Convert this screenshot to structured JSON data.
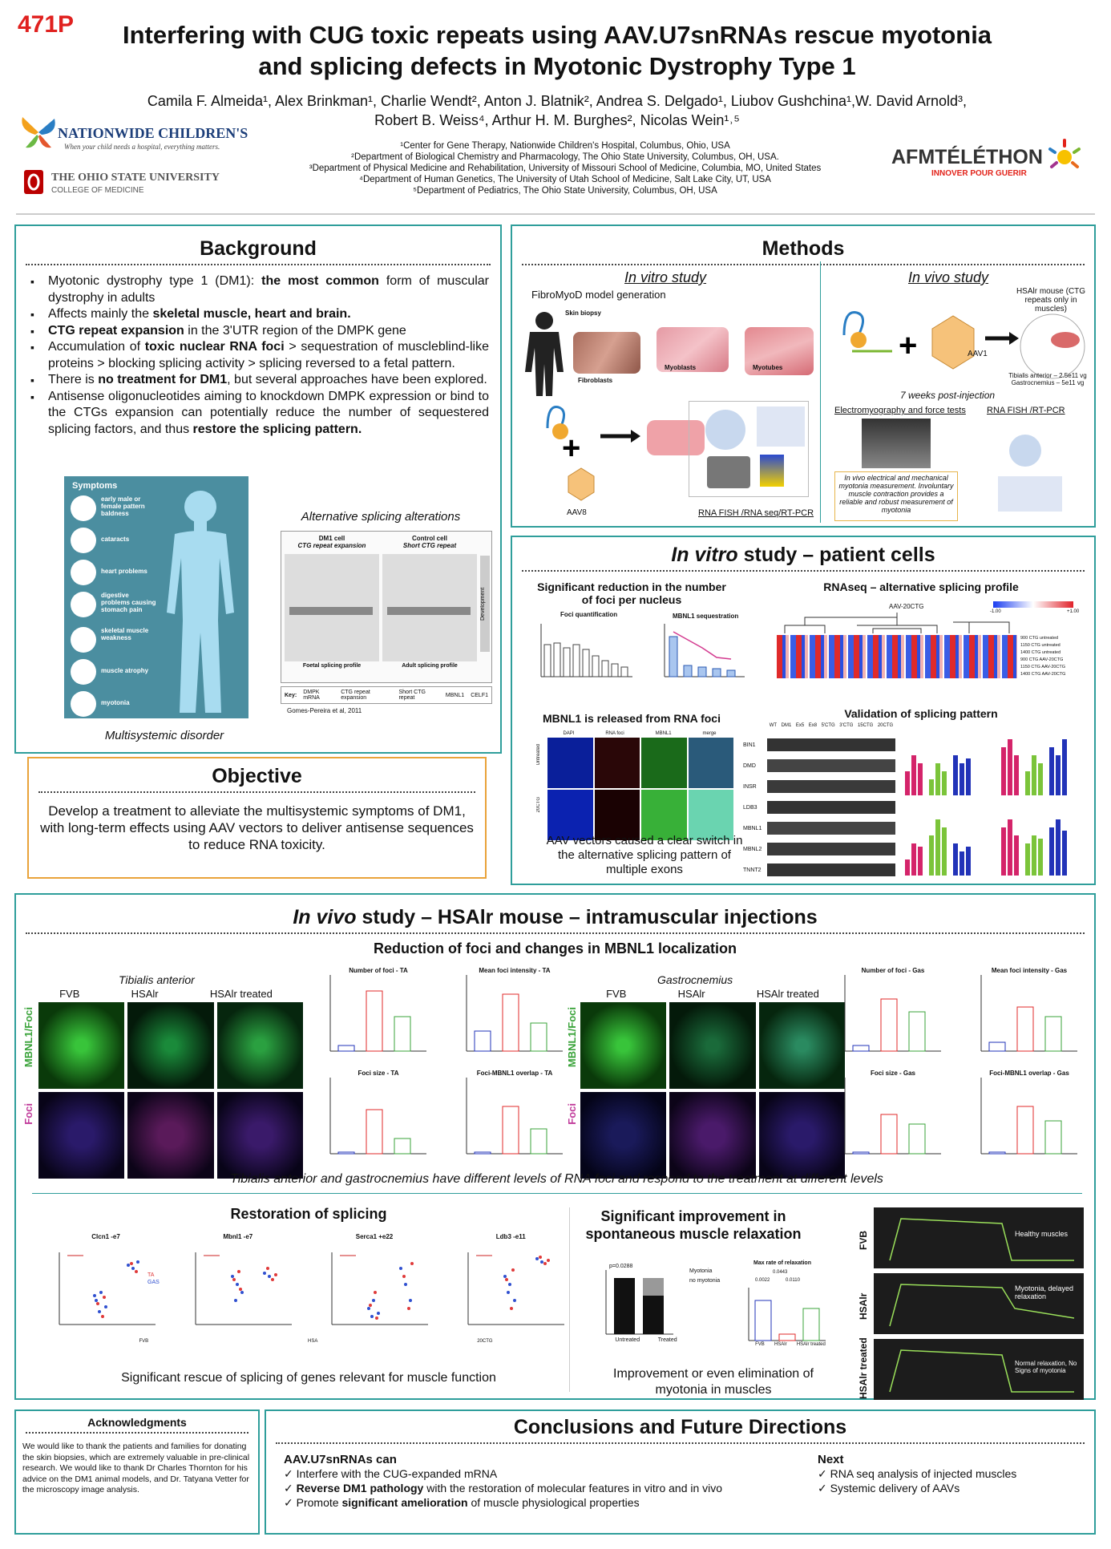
{
  "poster_id": "471P",
  "title_line1": "Interfering with CUG toxic repeats using AAV.U7snRNAs rescue myotonia",
  "title_line2": "and splicing defects in Myotonic Dystrophy Type 1",
  "authors_line1": "Camila F. Almeida¹, Alex Brinkman¹, Charlie Wendt², Anton J. Blatnik², Andrea S. Delgado¹, Liubov Gushchina¹,W. David Arnold³,",
  "authors_line2": "Robert B. Weiss⁴, Arthur H. M. Burghes², Nicolas Wein¹˒⁵",
  "affiliations": [
    "¹Center for Gene Therapy, Nationwide Children's Hospital, Columbus, Ohio, USA",
    "²Department of Biological Chemistry and Pharmacology, The Ohio State University, Columbus, OH, USA.",
    "³Department of Physical Medicine and Rehabilitation, University of Missouri School of Medicine, Columbia, MO, United States",
    "⁴Department of Human Genetics, The University of Utah School of Medicine, Salt Lake City, UT, USA",
    "⁵Department of Pediatrics, The Ohio State University, Columbus, OH, USA"
  ],
  "logos": {
    "nch_name": "NATIONWIDE CHILDREN'S",
    "nch_tag": "When your child needs a hospital, everything matters.",
    "osu_name": "THE OHIO STATE UNIVERSITY",
    "osu_sub": "COLLEGE OF MEDICINE",
    "afm_name": "AFMTÉLÉTHON",
    "afm_sub": "INNOVER POUR GUERIR"
  },
  "background": {
    "title": "Background",
    "bullets": [
      {
        "pre": "Myotonic dystrophy type 1 (DM1): ",
        "bold": "the most common",
        "post": " form of muscular dystrophy in adults"
      },
      {
        "pre": "Affects mainly the ",
        "bold": "skeletal muscle, heart and brain.",
        "post": ""
      },
      {
        "pre": "",
        "bold": "CTG repeat expansion",
        "post": " in the 3'UTR region of the DMPK gene"
      },
      {
        "pre": "Accumulation of ",
        "bold": "toxic nuclear RNA foci",
        "post": " > sequestration of muscleblind-like proteins > blocking splicing activity > splicing reversed to a fetal pattern."
      },
      {
        "pre": "There is ",
        "bold": "no treatment for DM1",
        "post": ", but several approaches have been explored."
      },
      {
        "pre": "Antisense oligonucleotides aiming to knockdown DMPK expression or bind to the CTGs expansion can potentially reduce the number of sequestered splicing factors, and thus ",
        "bold": "restore the splicing pattern.",
        "post": ""
      }
    ],
    "symptoms_title": "Symptoms",
    "symptoms": [
      "early male or female pattern baldness",
      "cataracts",
      "heart problems",
      "digestive problems causing stomach pain",
      "skeletal muscle weakness",
      "muscle atrophy",
      "myotonia"
    ],
    "symptoms_caption": "Multisystemic disorder",
    "alt_splicing_title": "Alternative splicing alterations",
    "dm1_cell": "DM1 cell",
    "dm1_cell_sub": "CTG repeat expansion",
    "control_cell": "Control cell",
    "control_cell_sub": "Short CTG repeat",
    "foetal": "Foetal splicing profile",
    "adult": "Adult splicing profile",
    "development": "Development",
    "key": "Key:",
    "key_items": [
      "DMPK mRNA",
      "CTG repeat expansion",
      "Short CTG repeat",
      "MBNL1",
      "CELF1"
    ],
    "citation": "Gomes-Pereira et al, 2011"
  },
  "objective": {
    "title": "Objective",
    "text": "Develop a treatment to alleviate the multisystemic symptoms of DM1, with long-term effects using AAV vectors to deliver antisense sequences to reduce RNA toxicity."
  },
  "methods": {
    "title": "Methods",
    "invitro_title": "In vitro study",
    "fibromyod": "FibroMyoD model generation",
    "skin_biopsy": "Skin biopsy",
    "fibroblasts": "Fibroblasts",
    "myoblasts": "Myoblasts",
    "myotubes": "Myotubes",
    "aav8": "AAV8",
    "rna_fish_seq": "RNA FISH /RNA seq/RT-PCR",
    "invivo_title": "In vivo study",
    "hsalr_mouse": "HSAlr mouse (CTG repeats only in muscles)",
    "aav1": "AAV1",
    "doses": "Tibialis anterior – 2.5e11 vg Gastrocnemius – 5e11 vg",
    "weeks": "7 weeks post-injection",
    "emg": "Electromyography and force tests",
    "rnafish_rtpcr": "RNA FISH /RT-PCR",
    "emg_caption": "In vivo electrical and mechanical myotonia measurement. Involuntary muscle contraction provides a reliable and robust measurement of myotonia"
  },
  "invitro": {
    "title_it": "In vitro",
    "title_rest": " study – patient cells",
    "foci_title": "Significant reduction in the number of foci per nucleus",
    "foci_quant": "Foci quantification",
    "mbnl1_seq": "MBNL1 sequestration",
    "rnaseq_title": "RNAseq – alternative splicing profile",
    "heatmap_label": "AAV-20CTG",
    "heatmap_rows": [
      "900 CTG untreated",
      "1150 CTG untreated",
      "1400 CTG untreated",
      "900 CTG AAV-20CTG",
      "1150 CTG AAV-20CTG",
      "1400 CTG AAV-20CTG"
    ],
    "heatmap_scale_min": "-1.00",
    "heatmap_scale_max": "+1.00",
    "mbnl1_released": "MBNL1 is released from RNA foci",
    "image_cols": [
      "DAPI",
      "RNA foci",
      "MBNL1",
      "merge"
    ],
    "image_rows": [
      "Untreated",
      "20CTG"
    ],
    "aav_caption": "AAV vectors caused a clear switch in the alternative splicing pattern of multiple exons",
    "validation_title": "Validation of splicing pattern",
    "gel_cols": [
      "WT",
      "DM1",
      "Ex5",
      "Ex8",
      "5'CTG",
      "3'CTG",
      "15CTG",
      "20CTG"
    ],
    "gel_rows": [
      "BIN1",
      "DMD",
      "INSR",
      "LDB3",
      "MBNL1",
      "MBNL2",
      "TNNT2"
    ]
  },
  "invivo": {
    "title_it": "In vivo",
    "title_rest": " study – HSAlr mouse – intramuscular injections",
    "reduction_title": "Reduction of foci and changes in MBNL1 localization",
    "ta": "Tibialis anterior",
    "gas": "Gastrocnemius",
    "cols": [
      "FVB",
      "HSAlr",
      "HSAlr treated"
    ],
    "row_mbnl": "MBNL1/Foci",
    "row_foci": "Foci",
    "ta_charts": [
      "Number of foci - TA",
      "Mean foci intensity - TA",
      "Foci size - TA",
      "Foci-MBNL1 overlap - TA"
    ],
    "gas_charts": [
      "Number of foci - Gas",
      "Mean foci intensity - Gas",
      "Foci size - Gas",
      "Foci-MBNL1 overlap - Gas"
    ],
    "groups": [
      "FVB",
      "HSAlr",
      "HSAlr treated"
    ],
    "levels_caption": "Tibialis anterior and gastrocnemius have different levels of RNA foci and respond to the treatment at different levels",
    "splicing_title": "Restoration of splicing",
    "splice_charts": [
      "Clcn1 -e7",
      "Mbnl1 -e7",
      "Serca1 +e22",
      "Ldb3 -e11"
    ],
    "splice_groups": [
      "FVB",
      "HSA",
      "20CTG"
    ],
    "splice_legend": [
      "TA",
      "GAS"
    ],
    "splice_caption": "Significant rescue of splicing of genes relevant for muscle function",
    "relax_title": "Significant improvement in spontaneous muscle relaxation",
    "myotonia_legend": [
      "Myotonia",
      "no myotonia"
    ],
    "pval": "p=0.0288",
    "bar_groups": [
      "Untreated",
      "Treated"
    ],
    "max_rate": "Max rate of relaxation",
    "max_pvals": [
      "0.0443",
      "0.0022",
      "0.0110"
    ],
    "relax_caption": "Improvement or even elimination of myotonia in muscles",
    "trace_rows": [
      "FVB",
      "HSAlr",
      "HSAlr treated"
    ],
    "trace_labels": [
      "Healthy muscles",
      "Myotonia, delayed relaxation",
      "Normal relaxation, No Signs of myotonia"
    ]
  },
  "ack": {
    "title": "Acknowledgments",
    "text": "We would like to thank the patients and families for donating the skin biopsies, which are extremely valuable in pre-clinical research. We would like to thank Dr Charles Thornton for his advice on the DM1 animal models, and Dr. Tatyana Vetter for the microscopy image analysis."
  },
  "conclusions": {
    "title": "Conclusions and Future Directions",
    "left_head": "AAV.U7snRNAs can",
    "left": [
      {
        "pre": "Interfere with the CUG-expanded mRNA",
        "bold": "",
        "post": ""
      },
      {
        "pre": "",
        "bold": "Reverse DM1 pathology",
        "post": " with the restoration of molecular features in vitro and in vivo"
      },
      {
        "pre": "Promote ",
        "bold": "significant amelioration",
        "post": " of muscle physiological properties"
      }
    ],
    "right_head": "Next",
    "right": [
      "RNA seq analysis of injected muscles",
      "Systemic delivery of AAVs"
    ]
  }
}
